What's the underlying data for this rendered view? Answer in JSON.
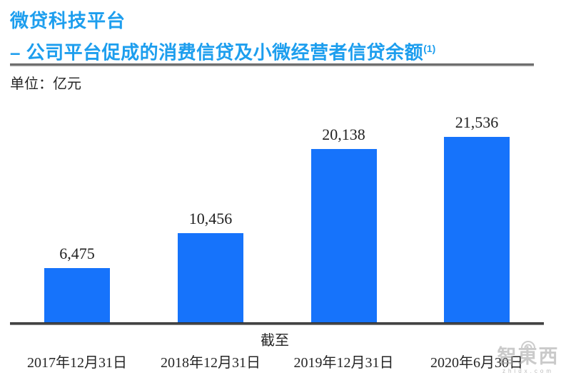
{
  "header": {
    "title": "微贷科技平台",
    "subtitle": "– 公司平台促成的消费信贷及小微经营者信贷余额",
    "subtitle_note": "(1)",
    "unit_label": "单位：亿元"
  },
  "chart_data": {
    "type": "bar",
    "title": "微贷科技平台 – 公司平台促成的消费信贷及小微经营者信贷余额(1)",
    "unit": "亿元",
    "categories": [
      "2017年12月31日",
      "2018年12月31日",
      "2019年12月31日",
      "2020年6月30日"
    ],
    "values": [
      6475,
      10456,
      20138,
      21536
    ],
    "value_labels": [
      "6,475",
      "10,456",
      "20,138",
      "21,536"
    ],
    "xlabel": "截至",
    "ylim": [
      0,
      21536
    ],
    "grid": false,
    "legend": "none",
    "bar_color": "#1673fb",
    "value_label_color": "#1f1f1f"
  },
  "watermark": {
    "logo_text": "智東西",
    "site_text": "zhidx.com"
  },
  "colors": {
    "accent_blue": "#1d9eee",
    "bar_blue": "#1673fb",
    "axis_gray": "#3a3a3a"
  }
}
